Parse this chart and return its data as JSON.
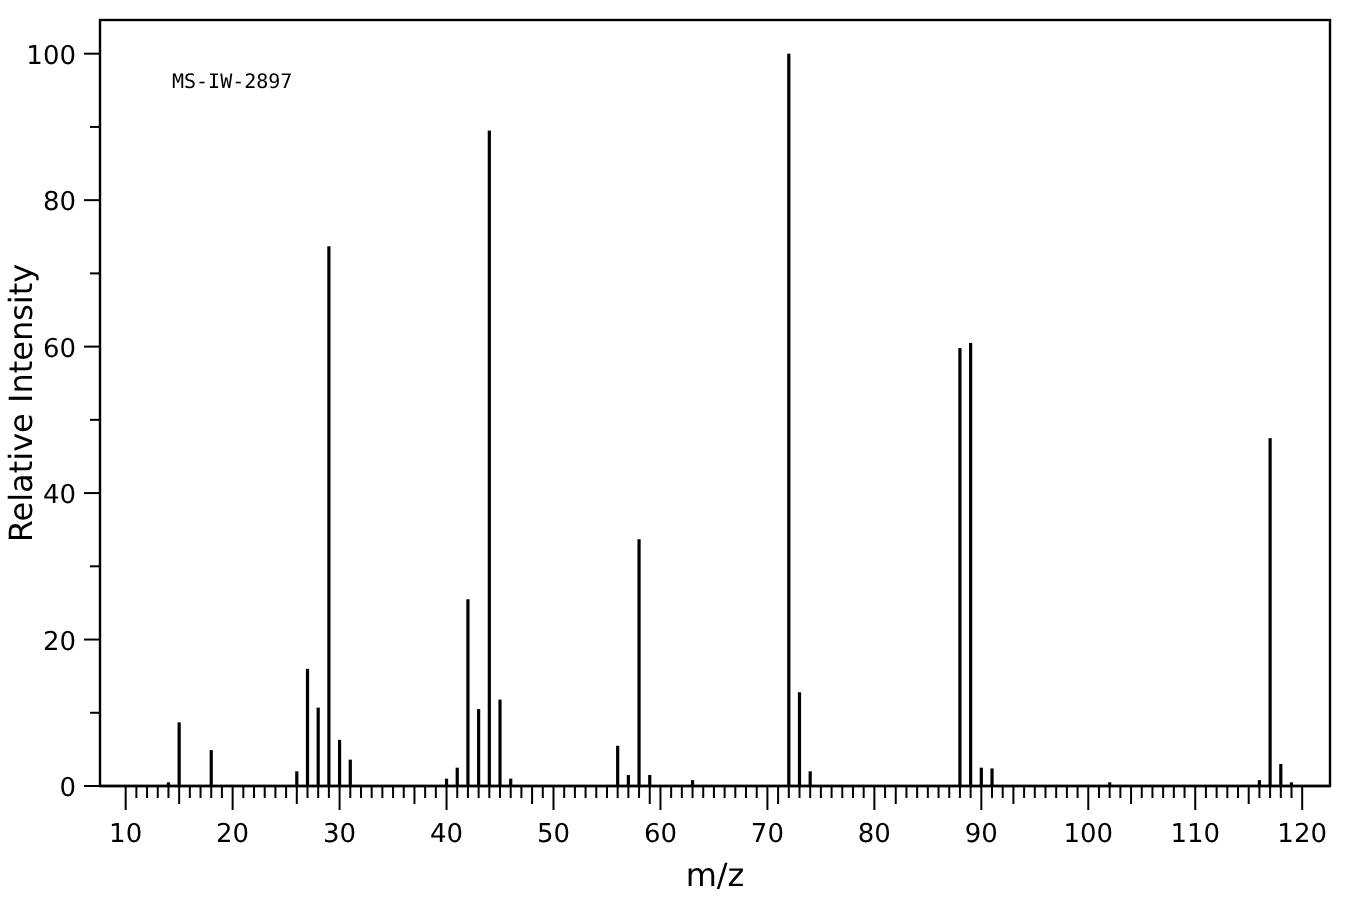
{
  "chart_data": {
    "type": "bar",
    "xlabel": "m/z",
    "ylabel": "Relative Intensity",
    "annotations": [
      "MS-IW-2897"
    ],
    "x": [
      14,
      15,
      18,
      26,
      27,
      28,
      29,
      30,
      31,
      40,
      41,
      42,
      43,
      44,
      45,
      46,
      56,
      57,
      58,
      59,
      63,
      72,
      73,
      74,
      88,
      89,
      90,
      91,
      102,
      116,
      117,
      118,
      119
    ],
    "values": [
      0.5,
      8.7,
      4.9,
      2,
      16,
      10.7,
      73.7,
      6.3,
      3.6,
      1,
      2.5,
      25.5,
      10.5,
      89.5,
      11.8,
      1,
      5.5,
      1.5,
      33.7,
      1.5,
      0.8,
      100,
      12.8,
      2,
      59.8,
      60.5,
      2.5,
      2.4,
      0.5,
      0.8,
      47.5,
      3,
      0.5
    ],
    "color": "#000000",
    "xlim": [
      7.6,
      122.6
    ],
    "ylim": [
      0,
      104.6
    ],
    "xticks": [
      10,
      20,
      30,
      40,
      50,
      60,
      70,
      80,
      90,
      100,
      110,
      120
    ],
    "yticks": [
      0,
      {
        "value": 10,
        "label": null
      },
      20,
      {
        "value": 30,
        "label": null
      },
      40,
      {
        "value": 50,
        "label": null
      },
      60,
      {
        "value": 70,
        "label": null
      },
      80,
      {
        "value": 90,
        "label": null
      },
      100
    ],
    "grid": false
  }
}
